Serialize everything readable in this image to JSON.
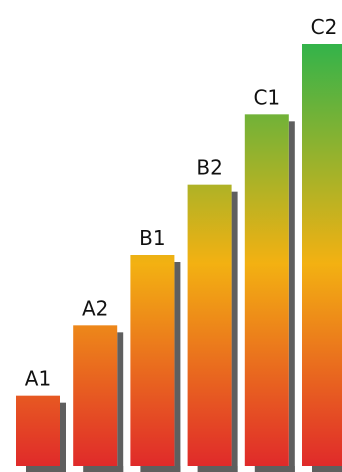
{
  "chart_data": {
    "type": "bar",
    "categories": [
      "A1",
      "A2",
      "B1",
      "B2",
      "C1",
      "C2"
    ],
    "values": [
      1,
      2,
      3,
      4,
      5,
      6
    ],
    "ylim": [
      0,
      6
    ],
    "grid": false,
    "legend": "none",
    "colors": {
      "low": "#e02a2a",
      "mid": "#f3b112",
      "high": "#33b34a",
      "shadow": "#5f5f5f"
    }
  }
}
